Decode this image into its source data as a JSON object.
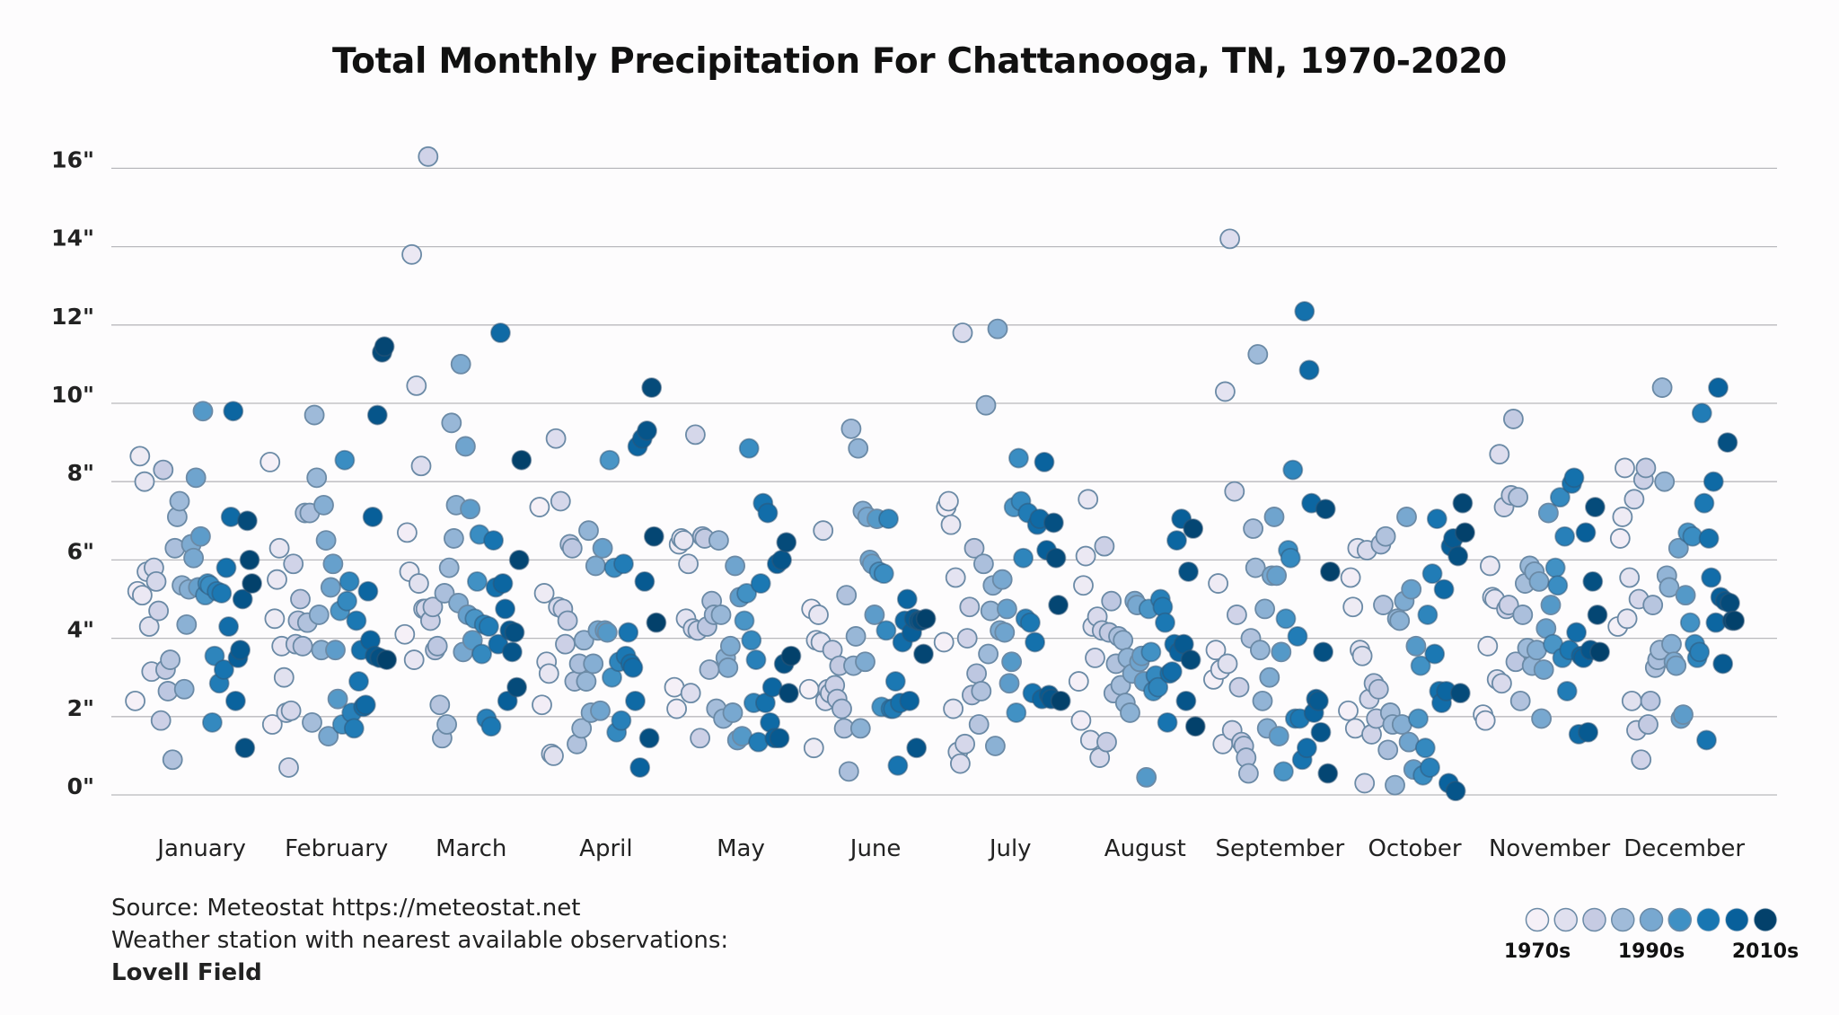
{
  "chart_data": {
    "type": "scatter",
    "title": "Total Monthly Precipitation For Chattanooga, TN, 1970-2020",
    "xlabel": "",
    "ylabel": "",
    "ylim": [
      0,
      16
    ],
    "y_ticks": [
      "0\"",
      "2\"",
      "4\"",
      "6\"",
      "8\"",
      "10\"",
      "12\"",
      "14\"",
      "16\""
    ],
    "y_tick_values": [
      0,
      2,
      4,
      6,
      8,
      10,
      12,
      14,
      16
    ],
    "grid": "horizontal",
    "year_range": [
      1970,
      2020
    ],
    "categories": [
      "January",
      "February",
      "March",
      "April",
      "May",
      "June",
      "July",
      "August",
      "September",
      "October",
      "November",
      "December"
    ],
    "series": [
      {
        "month": "January",
        "values": [
          2.4,
          5.2,
          8.65,
          5.1,
          8.0,
          5.7,
          4.3,
          3.15,
          5.8,
          5.45,
          4.7,
          1.9,
          8.3,
          3.2,
          2.65,
          3.45,
          0.9,
          6.3,
          7.1,
          7.5,
          5.35,
          2.7,
          4.35,
          5.25,
          6.4,
          6.05,
          8.1,
          5.3,
          6.6,
          9.8,
          5.1,
          5.4,
          5.35,
          1.85,
          3.55,
          5.2,
          2.85,
          5.15,
          3.2,
          5.8,
          4.3,
          7.1,
          9.8,
          2.4,
          3.5,
          3.7,
          5.0,
          1.2,
          7.0,
          6.0,
          5.4
        ]
      },
      {
        "month": "February",
        "values": [
          8.5,
          1.8,
          4.5,
          5.5,
          6.3,
          3.8,
          3.0,
          2.1,
          0.7,
          2.15,
          5.9,
          3.85,
          4.45,
          5.0,
          3.8,
          7.2,
          4.4,
          7.2,
          1.85,
          9.7,
          8.1,
          4.6,
          3.7,
          7.4,
          6.5,
          1.5,
          5.3,
          5.9,
          3.7,
          2.45,
          4.7,
          1.8,
          8.55,
          4.95,
          5.45,
          2.1,
          1.7,
          4.45,
          2.9,
          3.7,
          2.25,
          2.3,
          5.2,
          3.95,
          7.1,
          3.55,
          9.7,
          3.5,
          11.3,
          11.45,
          3.45
        ]
      },
      {
        "month": "March",
        "values": [
          4.1,
          6.7,
          5.7,
          13.8,
          3.45,
          10.45,
          5.4,
          8.4,
          4.75,
          4.75,
          16.3,
          4.45,
          4.8,
          3.7,
          3.8,
          2.3,
          1.45,
          5.15,
          1.8,
          5.8,
          9.5,
          6.55,
          7.4,
          4.9,
          11.0,
          3.65,
          8.9,
          4.6,
          7.3,
          3.95,
          4.5,
          5.45,
          6.65,
          3.6,
          4.35,
          1.95,
          4.3,
          1.75,
          6.5,
          5.3,
          3.85,
          11.8,
          5.4,
          4.75,
          2.4,
          4.2,
          3.65,
          4.15,
          2.75,
          6.0,
          8.55
        ]
      },
      {
        "month": "April",
        "values": [
          7.35,
          2.3,
          5.15,
          3.4,
          3.1,
          1.05,
          1.0,
          9.1,
          4.8,
          7.5,
          4.75,
          3.85,
          4.45,
          6.4,
          6.3,
          2.9,
          1.3,
          3.35,
          1.7,
          3.95,
          2.9,
          6.75,
          2.1,
          3.35,
          5.85,
          4.2,
          2.15,
          6.3,
          4.2,
          4.15,
          8.55,
          3.0,
          5.8,
          1.6,
          3.4,
          1.9,
          5.9,
          3.55,
          4.15,
          3.35,
          3.25,
          2.4,
          8.9,
          0.7,
          9.1,
          5.45,
          9.3,
          1.45,
          10.4,
          6.6,
          4.4
        ]
      },
      {
        "month": "May",
        "values": [
          2.75,
          2.2,
          6.4,
          6.55,
          6.5,
          4.5,
          5.9,
          2.6,
          4.25,
          9.2,
          4.2,
          1.45,
          6.6,
          6.55,
          4.3,
          3.2,
          4.95,
          4.6,
          2.2,
          6.5,
          4.6,
          1.95,
          3.5,
          3.25,
          3.8,
          2.1,
          5.85,
          1.4,
          5.05,
          1.5,
          4.45,
          5.15,
          8.85,
          3.95,
          2.35,
          3.45,
          1.35,
          5.4,
          7.45,
          2.35,
          7.2,
          1.85,
          2.75,
          1.45,
          5.9,
          1.45,
          6.0,
          3.35,
          6.45,
          2.6,
          3.55
        ]
      },
      {
        "month": "June",
        "values": [
          2.7,
          4.75,
          1.2,
          3.95,
          4.6,
          3.9,
          6.75,
          2.4,
          2.7,
          2.6,
          3.7,
          2.8,
          2.45,
          3.3,
          2.2,
          1.7,
          5.1,
          0.6,
          9.35,
          3.3,
          4.05,
          8.85,
          1.7,
          7.25,
          3.4,
          7.1,
          6.0,
          5.9,
          4.6,
          7.05,
          5.7,
          2.25,
          5.65,
          4.2,
          7.05,
          2.2,
          2.2,
          2.9,
          0.75,
          2.35,
          3.9,
          4.45,
          5.0,
          2.4,
          4.15,
          4.5,
          1.2,
          4.45,
          4.45,
          3.6,
          4.5
        ]
      },
      {
        "month": "July",
        "values": [
          3.9,
          7.35,
          7.5,
          6.9,
          2.2,
          5.55,
          1.1,
          0.8,
          11.8,
          1.3,
          4.0,
          4.8,
          2.55,
          6.3,
          3.1,
          1.8,
          2.65,
          5.9,
          9.95,
          3.6,
          4.7,
          5.35,
          1.25,
          11.9,
          4.2,
          5.5,
          4.15,
          4.75,
          2.85,
          3.4,
          7.35,
          2.1,
          8.6,
          7.5,
          6.05,
          4.5,
          7.2,
          4.4,
          2.6,
          3.9,
          6.9,
          7.05,
          2.45,
          8.5,
          6.25,
          2.55,
          2.45,
          6.95,
          6.05,
          4.85,
          2.4
        ]
      },
      {
        "month": "August",
        "values": [
          2.9,
          1.9,
          5.35,
          6.1,
          7.55,
          1.4,
          4.3,
          3.5,
          4.55,
          0.95,
          4.2,
          6.35,
          1.35,
          4.15,
          4.95,
          2.6,
          3.35,
          4.05,
          2.8,
          3.95,
          2.35,
          3.5,
          2.1,
          3.1,
          4.95,
          4.85,
          3.4,
          3.55,
          2.9,
          0.45,
          4.75,
          3.65,
          2.65,
          3.05,
          2.75,
          5.0,
          4.8,
          4.4,
          1.85,
          3.1,
          3.15,
          3.85,
          6.5,
          3.65,
          7.05,
          3.85,
          2.4,
          5.7,
          3.45,
          6.8,
          1.75
        ]
      },
      {
        "month": "September",
        "values": [
          2.95,
          3.7,
          5.4,
          3.2,
          1.3,
          10.3,
          3.35,
          14.2,
          1.65,
          7.75,
          4.6,
          2.75,
          1.35,
          1.25,
          0.95,
          0.55,
          4.0,
          6.8,
          5.8,
          11.25,
          3.7,
          2.4,
          4.75,
          1.7,
          3.0,
          5.6,
          7.1,
          5.6,
          1.5,
          3.65,
          0.6,
          4.5,
          6.25,
          6.05,
          8.3,
          1.95,
          4.05,
          1.95,
          0.9,
          12.35,
          1.2,
          10.85,
          7.45,
          2.1,
          2.45,
          2.4,
          1.6,
          3.65,
          7.3,
          0.55,
          5.7
        ]
      },
      {
        "month": "October",
        "values": [
          2.15,
          5.55,
          4.8,
          1.7,
          6.3,
          3.7,
          3.55,
          0.3,
          6.25,
          2.45,
          1.55,
          2.85,
          1.95,
          2.7,
          6.4,
          4.85,
          6.6,
          1.15,
          2.1,
          1.8,
          0.25,
          4.5,
          4.45,
          1.8,
          4.95,
          7.1,
          1.35,
          5.25,
          0.65,
          3.8,
          1.95,
          3.3,
          0.5,
          1.2,
          4.6,
          0.7,
          5.65,
          3.6,
          7.05,
          2.65,
          2.35,
          5.25,
          2.65,
          0.3,
          6.35,
          6.55,
          0.1,
          6.1,
          2.6,
          7.45,
          6.7
        ]
      },
      {
        "month": "November",
        "values": [
          2.05,
          1.9,
          3.8,
          5.85,
          5.05,
          5.0,
          2.95,
          8.7,
          2.85,
          7.35,
          4.75,
          4.85,
          7.65,
          9.6,
          3.4,
          7.6,
          2.4,
          4.6,
          5.4,
          3.75,
          5.85,
          3.3,
          5.7,
          3.7,
          5.45,
          1.95,
          3.2,
          4.25,
          7.2,
          4.85,
          3.85,
          5.8,
          5.35,
          7.6,
          3.5,
          6.6,
          2.65,
          3.7,
          7.95,
          8.1,
          4.15,
          1.55,
          3.55,
          3.5,
          6.7,
          1.6,
          3.7,
          5.45,
          7.35,
          4.6,
          3.65
        ]
      },
      {
        "month": "December",
        "values": [
          4.3,
          6.55,
          7.1,
          8.35,
          4.5,
          5.55,
          2.4,
          7.55,
          1.65,
          5.0,
          0.9,
          8.05,
          8.35,
          1.8,
          2.4,
          4.85,
          3.25,
          3.45,
          3.7,
          10.4,
          8.0,
          5.6,
          5.3,
          3.85,
          3.4,
          3.3,
          6.3,
          1.95,
          2.05,
          5.1,
          6.7,
          4.4,
          6.6,
          3.85,
          3.5,
          3.65,
          9.75,
          7.45,
          1.4,
          6.55,
          5.55,
          8.0,
          4.4,
          10.4,
          5.05,
          3.35,
          4.95,
          9.0,
          4.9,
          4.45,
          4.45
        ]
      }
    ],
    "color_scale": [
      "#f5f0f7",
      "#e0e0ef",
      "#c6cbe3",
      "#a0bbd9",
      "#78a8d0",
      "#3f90c4",
      "#1876b2",
      "#08609b",
      "#03416b"
    ],
    "legend": {
      "placement": "bottom-right",
      "labels": [
        "1970s",
        "1990s",
        "2010s"
      ]
    }
  },
  "footer": {
    "source": "Source: Meteostat https://meteostat.net",
    "station_note": "Weather station with nearest available observations:",
    "station_name": "Lovell Field"
  }
}
